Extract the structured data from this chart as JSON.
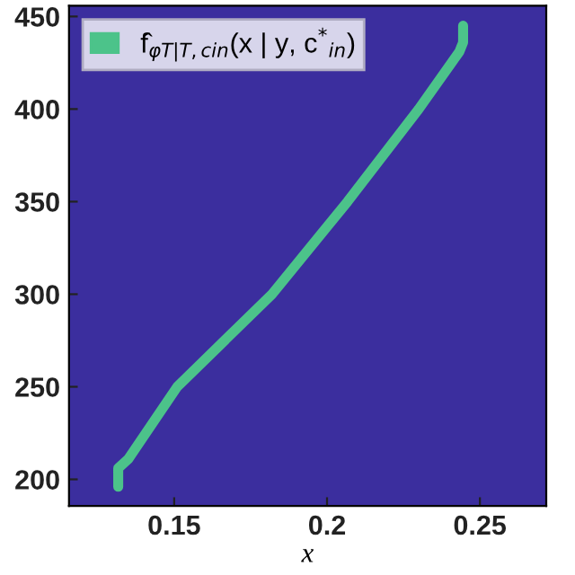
{
  "chart_data": {
    "type": "line",
    "xlabel": "x",
    "x": [
      0.1317,
      0.1317,
      0.135,
      0.151,
      0.182,
      0.2067,
      0.23,
      0.2433,
      0.2445,
      0.2445
    ],
    "series": [
      {
        "name": "f̂$_{φT|T,cin}$(x | y, c$^{*}$$_{in}$)",
        "color": "#4cc38a",
        "values": [
          196,
          206,
          211,
          250,
          300,
          350,
          400,
          431,
          436,
          445
        ]
      }
    ],
    "xlim": [
      0.1156,
      0.2717
    ],
    "xticks": [
      0.15,
      0.2,
      0.25
    ],
    "ylim": [
      185.6,
      455.8
    ],
    "yticks": [
      200,
      250,
      300,
      350,
      400,
      450
    ],
    "legend": "top left",
    "grid": false,
    "line_style": "solid",
    "marker": "none"
  }
}
